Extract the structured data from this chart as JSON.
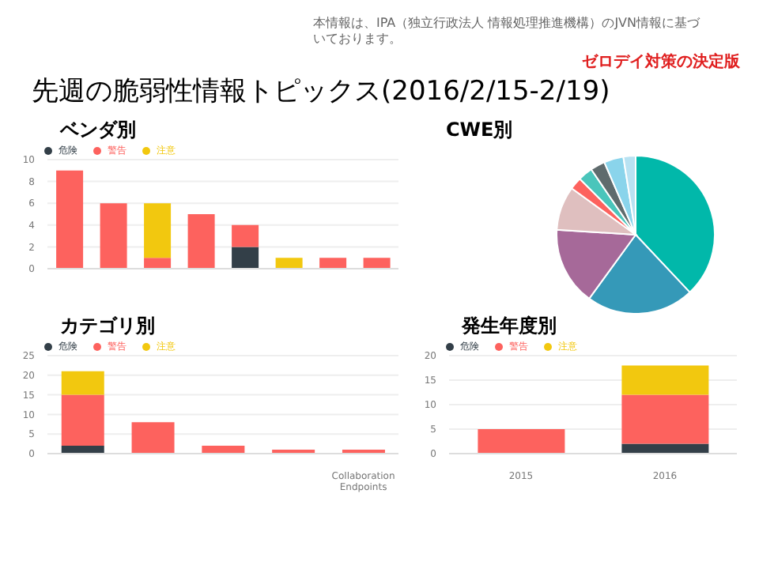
{
  "chart_data": [
    {
      "type": "other",
      "title": "先週の脆弱性情報トピックス(2016/2/15-2/19)",
      "annotations": [
        "本情報は、IPA（独立行政法人 情報処理推進機構）のJVN情報に基づいております。",
        "ゼロデイ対策の決定版"
      ]
    },
    {
      "type": "bar",
      "title": "ベンダ別",
      "stacked": true,
      "categories": [
        null,
        null,
        null,
        null,
        null,
        null,
        null,
        null
      ],
      "series": [
        {
          "name": "危険",
          "color": "#333f48",
          "values": [
            0,
            0,
            0,
            0,
            2,
            0,
            0,
            0
          ]
        },
        {
          "name": "警告",
          "color": "#fd625e",
          "values": [
            9,
            6,
            1,
            5,
            2,
            0,
            1,
            1
          ]
        },
        {
          "name": "注意",
          "color": "#f2c80f",
          "values": [
            0,
            0,
            5,
            0,
            0,
            1,
            0,
            0
          ]
        }
      ],
      "ylim": [
        0,
        10
      ],
      "yticks": [
        0,
        2,
        4,
        6,
        8,
        10
      ],
      "grid": "y",
      "legend": "top left"
    },
    {
      "type": "pie",
      "title": "CWE別",
      "categories": [
        null,
        null,
        null,
        null,
        null,
        null,
        null,
        null,
        null
      ],
      "values": [
        38,
        22,
        16,
        9,
        2.5,
        3,
        3,
        4,
        2.5
      ],
      "colors": [
        "#01b8aa",
        "#3599b8",
        "#a66999",
        "#dfbfbf",
        "#fd625e",
        "#4ac5bb",
        "#5f6b6d",
        "#8ad4eb",
        "#b8e2f2"
      ]
    },
    {
      "type": "bar",
      "title": "カテゴリ別",
      "stacked": true,
      "categories": [
        null,
        null,
        null,
        null,
        "Collaboration Endpoints"
      ],
      "series": [
        {
          "name": "危険",
          "color": "#333f48",
          "values": [
            2,
            0,
            0,
            0,
            0
          ]
        },
        {
          "name": "警告",
          "color": "#fd625e",
          "values": [
            13,
            8,
            2,
            1,
            1
          ]
        },
        {
          "name": "注意",
          "color": "#f2c80f",
          "values": [
            6,
            0,
            0,
            0,
            0
          ]
        }
      ],
      "ylim": [
        0,
        25
      ],
      "yticks": [
        0,
        5,
        10,
        15,
        20,
        25
      ],
      "grid": "y",
      "legend": "top left"
    },
    {
      "type": "bar",
      "title": "発生年度別",
      "stacked": true,
      "categories": [
        "2015",
        "2016"
      ],
      "series": [
        {
          "name": "危険",
          "color": "#333f48",
          "values": [
            0,
            2
          ]
        },
        {
          "name": "警告",
          "color": "#fd625e",
          "values": [
            5,
            10
          ]
        },
        {
          "name": "注意",
          "color": "#f2c80f",
          "values": [
            0,
            6
          ]
        }
      ],
      "ylim": [
        0,
        20
      ],
      "yticks": [
        0,
        5,
        10,
        15,
        20
      ],
      "grid": "y",
      "legend": "top left"
    }
  ]
}
